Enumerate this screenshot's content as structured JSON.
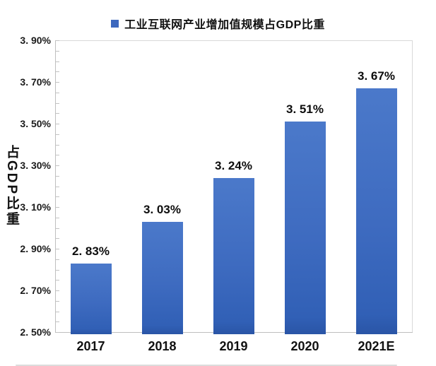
{
  "chart_data": {
    "type": "bar",
    "title": "",
    "legend": "工业互联网产业增加值规模占GDP比重",
    "ylabel": "占GDP比重",
    "xlabel": "",
    "categories": [
      "2017",
      "2018",
      "2019",
      "2020",
      "2021E"
    ],
    "values": [
      2.83,
      3.03,
      3.24,
      3.51,
      3.67
    ],
    "data_labels": [
      "2. 83%",
      "3. 03%",
      "3. 24%",
      "3. 51%",
      "3. 67%"
    ],
    "ytick_labels": [
      "3. 90%",
      "3. 70%",
      "3. 50%",
      "3. 30%",
      "3. 10%",
      "2. 90%",
      "2. 70%",
      "2. 50%"
    ],
    "ylim": [
      2.5,
      3.9
    ],
    "y_major_step": 0.2,
    "y_minor_step": 0.05,
    "grid": false,
    "legend_position": "top-center",
    "bar_color": "#4472C4",
    "bar_gradient_top": "#4B79CA",
    "bar_gradient_bottom": "#2A55A6",
    "legend_marker_color": "#3D68BE",
    "axis_line_color": "#bfbfbf",
    "text_color": "#111111"
  }
}
